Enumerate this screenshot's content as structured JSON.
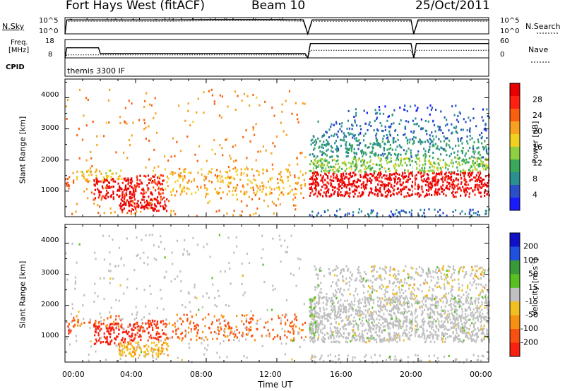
{
  "header": {
    "title": "Fort Hays West (fitACF)",
    "beam": "Beam 10",
    "date": "25/Oct/2011"
  },
  "noise_panel": {
    "left_label": "N.Sky",
    "left_ticks": [
      "10^5",
      "10^0"
    ],
    "right_label": "N.Search",
    "right_ticks": [
      "10^5",
      "10^0"
    ]
  },
  "freq_panel": {
    "left_label_1": "Freq.",
    "left_label_2": "[MHz]",
    "left_ticks": [
      "18",
      "8"
    ],
    "right_label": "Nave",
    "right_ticks": [
      "60",
      "0"
    ],
    "cpid_label": "CPID",
    "cpid_text": "themis 3300 IF"
  },
  "chart_data": [
    {
      "type": "line",
      "title": "N.Sky / N.Search",
      "x_unit": "hours UT",
      "x": [
        0,
        0.1,
        2,
        4,
        6,
        8,
        10,
        12,
        13.5,
        13.75,
        14,
        16,
        18,
        19.6,
        19.75,
        20,
        22,
        24
      ],
      "series": [
        {
          "name": "N.Sky",
          "values": [
            0,
            4.3,
            4.3,
            4.3,
            4.3,
            4.4,
            4.4,
            4.4,
            4.3,
            0,
            4.3,
            4.3,
            4.3,
            4.3,
            0,
            4.3,
            4.3,
            4.3
          ]
        },
        {
          "name": "N.Search",
          "values": [
            0,
            3.9,
            3.9,
            3.9,
            3.9,
            4.0,
            4.0,
            4.0,
            3.9,
            0,
            3.9,
            3.9,
            3.9,
            3.9,
            0,
            3.9,
            3.9,
            3.9
          ]
        }
      ],
      "yscale": "log",
      "ylim": [
        0,
        5
      ]
    },
    {
      "type": "line",
      "title": "Freq. / Nave",
      "x_unit": "hours UT",
      "x": [
        0,
        0.1,
        1.9,
        2.0,
        13.6,
        13.75,
        13.9,
        14.2,
        19.6,
        19.75,
        19.9,
        24
      ],
      "series": [
        {
          "name": "Freq. [MHz]",
          "values": [
            8,
            13.5,
            13.5,
            10.4,
            10.4,
            8,
            15.8,
            15.8,
            15.8,
            8,
            15.8,
            15.8
          ]
        },
        {
          "name": "Nave",
          "values": [
            0,
            10,
            10,
            10,
            10,
            0,
            25,
            25,
            25,
            0,
            25,
            25
          ]
        }
      ],
      "ylim": [
        8,
        18
      ],
      "y2lim": [
        0,
        60
      ]
    },
    {
      "type": "heatmap",
      "title": "Power [dB]",
      "ylabel": "Slant Range [km]",
      "ylim": [
        180,
        4600
      ],
      "yticks": [
        "1000",
        "2000",
        "3000",
        "4000"
      ],
      "xticks": [
        "00:00",
        "04:00",
        "08:00",
        "12:00",
        "16:00",
        "20:00",
        "00:00"
      ],
      "colorbar": {
        "label": "Power [dB]",
        "ticks": [
          "4",
          "8",
          "12",
          "16",
          "20",
          "24",
          "28"
        ],
        "colors": [
          "#1a1aff",
          "#2a4fc8",
          "#2a8f8f",
          "#3aa85a",
          "#8fd040",
          "#f0d020",
          "#f8a020",
          "#f86010",
          "#ff2010",
          "#e80000"
        ]
      },
      "regions": [
        {
          "t0": 0.0,
          "t1": 0.3,
          "r0": 1050,
          "r1": 1550,
          "value": 24,
          "density": 0.6
        },
        {
          "t0": 0.3,
          "t1": 3.2,
          "r0": 1350,
          "r1": 1700,
          "value": 18,
          "density": 0.45
        },
        {
          "t0": 1.6,
          "t1": 3.9,
          "r0": 780,
          "r1": 1450,
          "value": 30,
          "density": 0.8
        },
        {
          "t0": 3.0,
          "t1": 5.8,
          "r0": 380,
          "r1": 860,
          "value": 30,
          "density": 0.85
        },
        {
          "t0": 3.9,
          "t1": 5.6,
          "r0": 900,
          "r1": 1550,
          "value": 28,
          "density": 0.7
        },
        {
          "t0": 5.6,
          "t1": 13.6,
          "r0": 900,
          "r1": 1750,
          "value": 20,
          "density": 0.32
        },
        {
          "t0": 0.0,
          "t1": 13.6,
          "r0": 200,
          "r1": 4300,
          "value": 22,
          "density": 0.05
        },
        {
          "t0": 13.8,
          "t1": 24.0,
          "r0": 850,
          "r1": 1650,
          "value": 30,
          "density": 0.9
        },
        {
          "t0": 13.8,
          "t1": 24.0,
          "r0": 1650,
          "r1": 2100,
          "value": 14,
          "density": 0.75
        },
        {
          "t0": 13.8,
          "t1": 24.0,
          "r0": 2100,
          "r1": 2700,
          "value": 9,
          "density": 0.5
        },
        {
          "t0": 14.0,
          "t1": 24.0,
          "r0": 2700,
          "r1": 3300,
          "value": 6,
          "density": 0.3
        },
        {
          "t0": 16.0,
          "t1": 24.0,
          "r0": 3300,
          "r1": 3800,
          "value": 5,
          "density": 0.15
        },
        {
          "t0": 13.8,
          "t1": 24.0,
          "r0": 200,
          "r1": 450,
          "value": 6,
          "density": 0.35
        }
      ]
    },
    {
      "type": "heatmap",
      "title": "Velocity [m s^-1]",
      "ylabel": "Slant Range [km]",
      "xlabel": "Time UT",
      "ylim": [
        180,
        4600
      ],
      "yticks": [
        "1000",
        "2000",
        "3000",
        "4000"
      ],
      "xticks": [
        "00:00",
        "04:00",
        "08:00",
        "12:00",
        "16:00",
        "20:00",
        "00:00"
      ],
      "colorbar": {
        "label": "Velocity [m s^-1]",
        "ticks": [
          "200",
          "100",
          "50",
          "15",
          "-15",
          "-50",
          "-100",
          "-200"
        ],
        "colors": [
          "#1010c8",
          "#2050e0",
          "#3a9a3a",
          "#58c020",
          "#c0c0c0",
          "#f0c020",
          "#f89010",
          "#f85010",
          "#f82010"
        ]
      },
      "regions": [
        {
          "t0": 0.0,
          "t1": 0.3,
          "r0": 1050,
          "r1": 1550,
          "value": -200,
          "density": 0.6
        },
        {
          "t0": 0.3,
          "t1": 3.2,
          "r0": 1350,
          "r1": 1700,
          "value": -150,
          "density": 0.4
        },
        {
          "t0": 1.6,
          "t1": 3.9,
          "r0": 780,
          "r1": 1450,
          "value": -250,
          "density": 0.8
        },
        {
          "t0": 3.0,
          "t1": 5.8,
          "r0": 380,
          "r1": 860,
          "value": -70,
          "density": 0.85
        },
        {
          "t0": 3.9,
          "t1": 5.6,
          "r0": 900,
          "r1": 1550,
          "value": -200,
          "density": 0.7
        },
        {
          "t0": 5.6,
          "t1": 13.6,
          "r0": 900,
          "r1": 1750,
          "value": -150,
          "density": 0.3
        },
        {
          "t0": 0.0,
          "t1": 13.6,
          "r0": 200,
          "r1": 4300,
          "value": 0,
          "density": 0.05
        },
        {
          "t0": 13.8,
          "t1": 24.0,
          "r0": 850,
          "r1": 2300,
          "value": 0,
          "density": 0.92
        },
        {
          "t0": 13.8,
          "t1": 14.2,
          "r0": 850,
          "r1": 2300,
          "value": 30,
          "density": 0.8
        },
        {
          "t0": 14.0,
          "t1": 24.0,
          "r0": 2300,
          "r1": 3300,
          "value": 0,
          "density": 0.35
        },
        {
          "t0": 17.0,
          "t1": 24.0,
          "r0": 2300,
          "r1": 3300,
          "value": -60,
          "density": 0.1
        },
        {
          "t0": 13.8,
          "t1": 24.0,
          "r0": 200,
          "r1": 450,
          "value": 0,
          "density": 0.3
        }
      ]
    }
  ]
}
